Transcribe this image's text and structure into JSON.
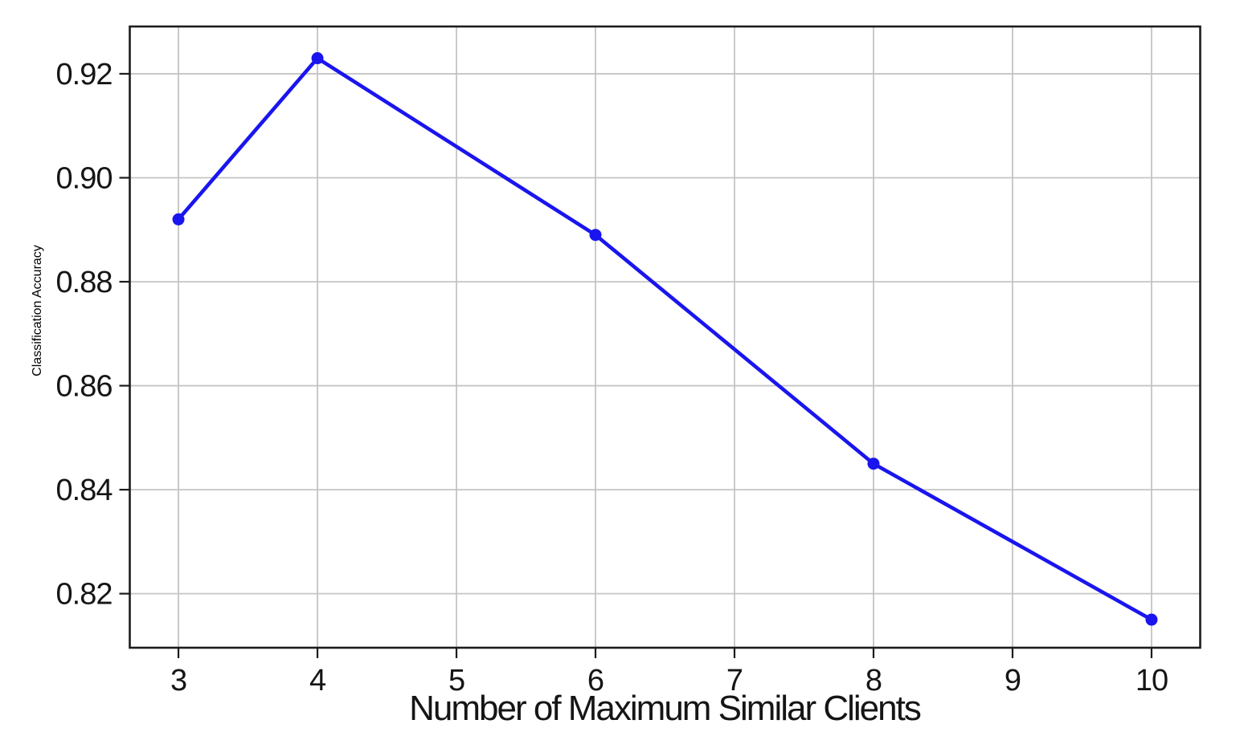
{
  "chart_data": {
    "type": "line",
    "x": [
      3,
      4,
      6,
      8,
      10
    ],
    "y": [
      0.892,
      0.923,
      0.889,
      0.845,
      0.815
    ],
    "title": "",
    "xlabel": "Number of Maximum Similar Clients",
    "ylabel": "Classification Accuracy",
    "xlim": [
      2.65,
      10.35
    ],
    "ylim": [
      0.8096,
      0.9291
    ],
    "x_ticks": [
      3,
      4,
      5,
      6,
      7,
      8,
      9,
      10
    ],
    "x_tick_labels": [
      "3",
      "4",
      "5",
      "6",
      "7",
      "8",
      "9",
      "10"
    ],
    "y_ticks": [
      0.82,
      0.84,
      0.86,
      0.88,
      0.9,
      0.92
    ],
    "y_tick_labels": [
      "0.82",
      "0.84",
      "0.86",
      "0.88",
      "0.90",
      "0.92"
    ],
    "grid": true,
    "legend": "none",
    "marker": "circle",
    "colors": {
      "line": "#1a15ee",
      "marker": "#1a15ee",
      "grid": "#c4c4c4",
      "spine": "#1c1c1c",
      "tick_text": "#151515",
      "background": "#ffffff"
    }
  }
}
